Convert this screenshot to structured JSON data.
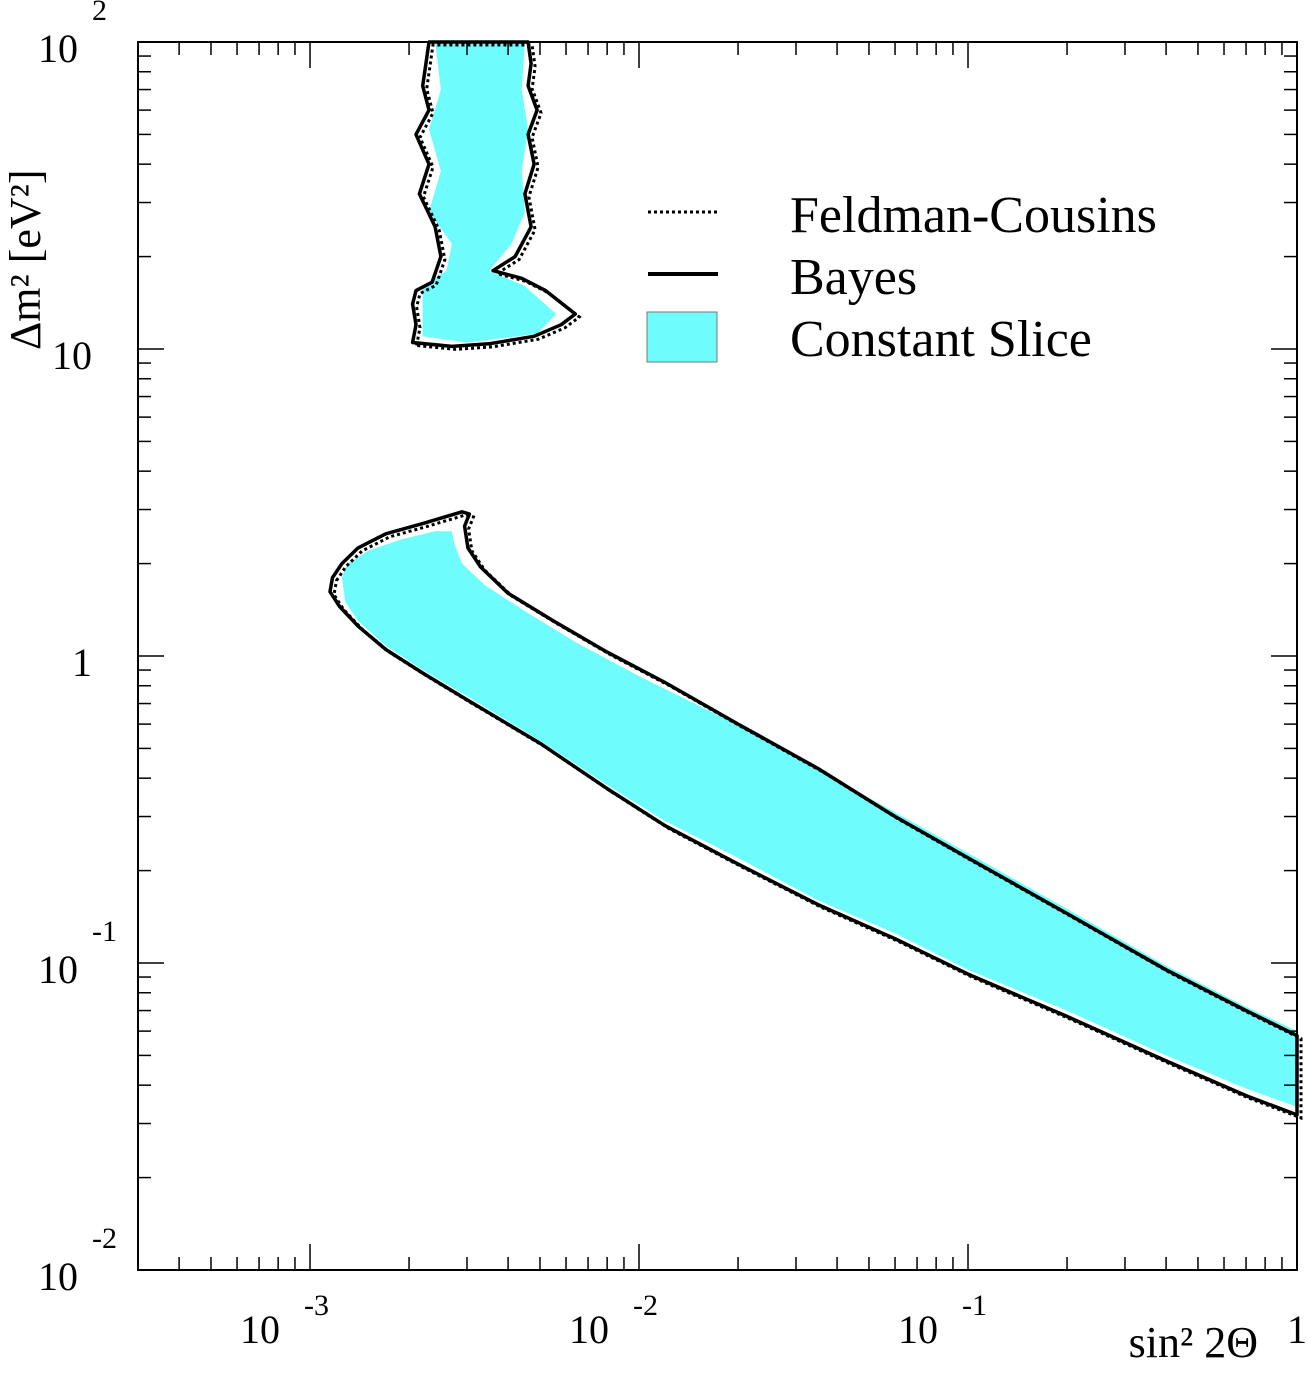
{
  "chart_data": {
    "type": "area",
    "title": "",
    "xlabel": "sin² 2Θ",
    "ylabel": "Δm² [eV²]",
    "x_scale": "log",
    "y_scale": "log",
    "xlim": [
      0.0003,
      1
    ],
    "ylim": [
      0.01,
      100
    ],
    "grid": false,
    "legend_position": "top-right",
    "x_ticks": [
      {
        "base": "10",
        "exp": "-3",
        "value": 0.001
      },
      {
        "base": "10",
        "exp": "-2",
        "value": 0.01
      },
      {
        "base": "10",
        "exp": "-1",
        "value": 0.1
      },
      {
        "base": "",
        "exp": "1",
        "value": 1
      }
    ],
    "y_ticks": [
      {
        "base": "10",
        "exp": "-2",
        "value": 0.01
      },
      {
        "base": "10",
        "exp": "-1",
        "value": 0.1
      },
      {
        "base": "1",
        "exp": "",
        "value": 1
      },
      {
        "base": "10",
        "exp": "",
        "value": 10
      },
      {
        "base": "10",
        "exp": "2",
        "value": 100
      }
    ],
    "legend": [
      {
        "label": "Feldman-Cousins",
        "style": "dotted"
      },
      {
        "label": "Bayes",
        "style": "solid"
      },
      {
        "label": "Constant Slice",
        "style": "fill"
      }
    ],
    "colors": {
      "fill": "#6ffcfc",
      "line": "#000000"
    },
    "regions": {
      "lower_band": {
        "outer": [
          [
            0.00117,
            1.8
          ],
          [
            0.00125,
            2.0
          ],
          [
            0.0014,
            2.25
          ],
          [
            0.0017,
            2.5
          ],
          [
            0.0022,
            2.7
          ],
          [
            0.0026,
            2.85
          ],
          [
            0.0029,
            2.95
          ],
          [
            0.00305,
            2.9
          ],
          [
            0.00295,
            2.65
          ],
          [
            0.00302,
            2.25
          ],
          [
            0.0033,
            1.95
          ],
          [
            0.004,
            1.6
          ],
          [
            0.0055,
            1.3
          ],
          [
            0.008,
            1.03
          ],
          [
            0.012,
            0.82
          ],
          [
            0.02,
            0.6
          ],
          [
            0.035,
            0.43
          ],
          [
            0.06,
            0.3
          ],
          [
            0.1,
            0.22
          ],
          [
            0.2,
            0.145
          ],
          [
            0.4,
            0.095
          ],
          [
            0.7,
            0.07
          ],
          [
            1.0,
            0.058
          ],
          [
            1.0,
            0.032
          ],
          [
            0.7,
            0.037
          ],
          [
            0.4,
            0.048
          ],
          [
            0.2,
            0.067
          ],
          [
            0.1,
            0.092
          ],
          [
            0.06,
            0.12
          ],
          [
            0.035,
            0.155
          ],
          [
            0.02,
            0.21
          ],
          [
            0.012,
            0.28
          ],
          [
            0.008,
            0.37
          ],
          [
            0.005,
            0.52
          ],
          [
            0.003,
            0.72
          ],
          [
            0.0022,
            0.88
          ],
          [
            0.0017,
            1.05
          ],
          [
            0.0014,
            1.25
          ],
          [
            0.00123,
            1.45
          ],
          [
            0.00115,
            1.62
          ]
        ],
        "fill": [
          [
            0.00125,
            1.8
          ],
          [
            0.0013,
            2.0
          ],
          [
            0.0015,
            2.2
          ],
          [
            0.0019,
            2.4
          ],
          [
            0.0024,
            2.55
          ],
          [
            0.0027,
            2.55
          ],
          [
            0.00275,
            2.3
          ],
          [
            0.0029,
            2.0
          ],
          [
            0.0034,
            1.7
          ],
          [
            0.0045,
            1.4
          ],
          [
            0.0065,
            1.1
          ],
          [
            0.01,
            0.86
          ],
          [
            0.018,
            0.63
          ],
          [
            0.033,
            0.44
          ],
          [
            0.06,
            0.31
          ],
          [
            0.1,
            0.228
          ],
          [
            0.2,
            0.15
          ],
          [
            0.4,
            0.098
          ],
          [
            0.7,
            0.072
          ],
          [
            1.0,
            0.06
          ],
          [
            1.0,
            0.034
          ],
          [
            0.7,
            0.039
          ],
          [
            0.4,
            0.05
          ],
          [
            0.2,
            0.07
          ],
          [
            0.1,
            0.095
          ],
          [
            0.06,
            0.125
          ],
          [
            0.035,
            0.16
          ],
          [
            0.02,
            0.22
          ],
          [
            0.012,
            0.29
          ],
          [
            0.008,
            0.38
          ],
          [
            0.005,
            0.53
          ],
          [
            0.003,
            0.74
          ],
          [
            0.0022,
            0.9
          ],
          [
            0.0017,
            1.08
          ],
          [
            0.0014,
            1.3
          ],
          [
            0.00128,
            1.5
          ]
        ]
      },
      "upper_band": {
        "outer": [
          [
            0.00205,
            10.5
          ],
          [
            0.0021,
            12
          ],
          [
            0.00205,
            14
          ],
          [
            0.0021,
            15.5
          ],
          [
            0.00235,
            16.5
          ],
          [
            0.0025,
            20
          ],
          [
            0.0024,
            25
          ],
          [
            0.00215,
            32
          ],
          [
            0.0023,
            40
          ],
          [
            0.0021,
            50
          ],
          [
            0.0023,
            60
          ],
          [
            0.0022,
            72
          ],
          [
            0.00225,
            85
          ],
          [
            0.0023,
            100
          ],
          [
            0.0046,
            100
          ],
          [
            0.0047,
            85
          ],
          [
            0.0046,
            72
          ],
          [
            0.0049,
            60
          ],
          [
            0.0046,
            50
          ],
          [
            0.0048,
            40
          ],
          [
            0.0045,
            32
          ],
          [
            0.0047,
            25
          ],
          [
            0.0042,
            20
          ],
          [
            0.0036,
            18
          ],
          [
            0.0044,
            17
          ],
          [
            0.0052,
            15.5
          ],
          [
            0.0064,
            13
          ],
          [
            0.0058,
            12
          ],
          [
            0.0048,
            11
          ],
          [
            0.0035,
            10.4
          ],
          [
            0.0027,
            10.2
          ]
        ],
        "fill": [
          [
            0.0022,
            11
          ],
          [
            0.0022,
            16
          ],
          [
            0.0026,
            18
          ],
          [
            0.0027,
            22
          ],
          [
            0.0023,
            28
          ],
          [
            0.0025,
            38
          ],
          [
            0.0023,
            52
          ],
          [
            0.0025,
            70
          ],
          [
            0.0024,
            100
          ],
          [
            0.0045,
            100
          ],
          [
            0.0044,
            70
          ],
          [
            0.0046,
            52
          ],
          [
            0.0044,
            38
          ],
          [
            0.0045,
            28
          ],
          [
            0.0041,
            22
          ],
          [
            0.0035,
            18
          ],
          [
            0.0045,
            16
          ],
          [
            0.0056,
            13
          ],
          [
            0.0049,
            11.2
          ],
          [
            0.003,
            10.5
          ]
        ]
      }
    }
  }
}
